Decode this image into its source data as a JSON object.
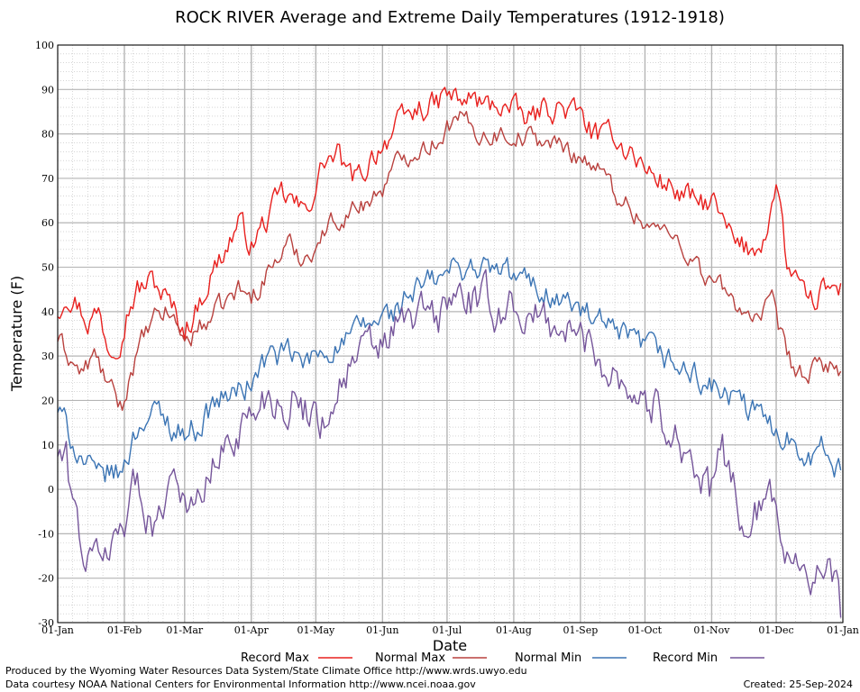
{
  "chart_data": {
    "type": "line",
    "title": "ROCK RIVER Average and Extreme Daily Temperatures (1912-1918)",
    "xlabel": "Date",
    "ylabel": "Temperature (F)",
    "ylim": [
      -30,
      100
    ],
    "yticks": [
      -30,
      -20,
      -10,
      0,
      10,
      20,
      30,
      40,
      50,
      60,
      70,
      80,
      90,
      100
    ],
    "x_days": [
      1,
      32,
      60,
      91,
      121,
      152,
      182,
      213,
      244,
      274,
      305,
      335,
      366
    ],
    "xtick_labels": [
      "01-Jan",
      "01-Feb",
      "01-Mar",
      "01-Apr",
      "01-May",
      "01-Jun",
      "01-Jul",
      "01-Aug",
      "01-Sep",
      "01-Oct",
      "01-Nov",
      "01-Dec",
      "01-Jan"
    ],
    "grid": true,
    "legend_position": "bottom",
    "colors": {
      "record_max": "#e8201e",
      "normal_max": "#b8413e",
      "normal_min": "#3b74b4",
      "record_min": "#75559a",
      "grid_major": "#b5b5b5",
      "grid_minor": "#bdbdbd"
    },
    "series": [
      {
        "name": "Record Max",
        "color": "#e8201e",
        "anchors": [
          [
            1,
            40
          ],
          [
            5,
            45
          ],
          [
            10,
            42
          ],
          [
            15,
            38
          ],
          [
            20,
            40
          ],
          [
            25,
            32
          ],
          [
            30,
            35
          ],
          [
            33,
            40
          ],
          [
            38,
            45
          ],
          [
            45,
            47
          ],
          [
            50,
            44
          ],
          [
            55,
            40
          ],
          [
            60,
            36
          ],
          [
            65,
            40
          ],
          [
            72,
            48
          ],
          [
            80,
            55
          ],
          [
            85,
            60
          ],
          [
            91,
            55
          ],
          [
            100,
            62
          ],
          [
            105,
            66
          ],
          [
            110,
            65
          ],
          [
            115,
            62
          ],
          [
            121,
            68
          ],
          [
            125,
            74
          ],
          [
            132,
            75
          ],
          [
            136,
            70
          ],
          [
            142,
            70
          ],
          [
            147,
            75
          ],
          [
            152,
            78
          ],
          [
            160,
            82
          ],
          [
            165,
            84
          ],
          [
            170,
            86
          ],
          [
            176,
            86
          ],
          [
            182,
            89
          ],
          [
            188,
            87
          ],
          [
            194,
            88
          ],
          [
            200,
            86
          ],
          [
            206,
            87
          ],
          [
            213,
            85
          ],
          [
            220,
            83
          ],
          [
            228,
            86
          ],
          [
            235,
            86
          ],
          [
            244,
            84
          ],
          [
            250,
            80
          ],
          [
            255,
            78
          ],
          [
            258,
            82
          ],
          [
            262,
            78
          ],
          [
            268,
            76
          ],
          [
            274,
            72
          ],
          [
            280,
            70
          ],
          [
            286,
            68
          ],
          [
            292,
            66
          ],
          [
            300,
            64
          ],
          [
            305,
            65
          ],
          [
            312,
            58
          ],
          [
            318,
            54
          ],
          [
            325,
            54
          ],
          [
            330,
            58
          ],
          [
            333,
            64
          ],
          [
            336,
            68
          ],
          [
            340,
            50
          ],
          [
            345,
            46
          ],
          [
            350,
            40
          ],
          [
            355,
            44
          ],
          [
            360,
            45
          ],
          [
            365,
            45
          ]
        ],
        "amp": 3.2
      },
      {
        "name": "Normal Max",
        "color": "#b8413e",
        "anchors": [
          [
            1,
            34
          ],
          [
            6,
            30
          ],
          [
            12,
            26
          ],
          [
            18,
            30
          ],
          [
            22,
            26
          ],
          [
            26,
            22
          ],
          [
            31,
            18
          ],
          [
            34,
            25
          ],
          [
            40,
            33
          ],
          [
            46,
            38
          ],
          [
            52,
            40
          ],
          [
            58,
            36
          ],
          [
            60,
            33
          ],
          [
            66,
            36
          ],
          [
            75,
            40
          ],
          [
            85,
            45
          ],
          [
            91,
            43
          ],
          [
            100,
            50
          ],
          [
            108,
            55
          ],
          [
            115,
            52
          ],
          [
            121,
            55
          ],
          [
            128,
            60
          ],
          [
            135,
            62
          ],
          [
            142,
            64
          ],
          [
            148,
            66
          ],
          [
            152,
            68
          ],
          [
            160,
            74
          ],
          [
            168,
            77
          ],
          [
            176,
            78
          ],
          [
            182,
            82
          ],
          [
            190,
            83
          ],
          [
            198,
            80
          ],
          [
            206,
            80
          ],
          [
            213,
            80
          ],
          [
            222,
            79
          ],
          [
            230,
            78
          ],
          [
            240,
            76
          ],
          [
            248,
            74
          ],
          [
            254,
            71
          ],
          [
            260,
            67
          ],
          [
            266,
            64
          ],
          [
            274,
            60
          ],
          [
            282,
            58
          ],
          [
            290,
            56
          ],
          [
            296,
            52
          ],
          [
            302,
            48
          ],
          [
            308,
            46
          ],
          [
            315,
            42
          ],
          [
            322,
            40
          ],
          [
            328,
            38
          ],
          [
            333,
            42
          ],
          [
            336,
            36
          ],
          [
            340,
            30
          ],
          [
            345,
            26
          ],
          [
            350,
            25
          ],
          [
            355,
            28
          ],
          [
            360,
            28
          ],
          [
            365,
            27
          ]
        ],
        "amp": 2.6
      },
      {
        "name": "Normal Min",
        "color": "#3b74b4",
        "anchors": [
          [
            1,
            18
          ],
          [
            5,
            14
          ],
          [
            10,
            9
          ],
          [
            15,
            5
          ],
          [
            20,
            2
          ],
          [
            25,
            4
          ],
          [
            30,
            3
          ],
          [
            35,
            10
          ],
          [
            40,
            16
          ],
          [
            48,
            17
          ],
          [
            55,
            14
          ],
          [
            60,
            13
          ],
          [
            66,
            14
          ],
          [
            75,
            20
          ],
          [
            85,
            22
          ],
          [
            91,
            24
          ],
          [
            96,
            28
          ],
          [
            100,
            30
          ],
          [
            110,
            30
          ],
          [
            115,
            28
          ],
          [
            121,
            30
          ],
          [
            128,
            32
          ],
          [
            135,
            33
          ],
          [
            142,
            36
          ],
          [
            150,
            38
          ],
          [
            158,
            40
          ],
          [
            165,
            44
          ],
          [
            172,
            46
          ],
          [
            178,
            47
          ],
          [
            182,
            49
          ],
          [
            190,
            50
          ],
          [
            198,
            50
          ],
          [
            206,
            49
          ],
          [
            213,
            48
          ],
          [
            222,
            46
          ],
          [
            230,
            44
          ],
          [
            238,
            42
          ],
          [
            244,
            40
          ],
          [
            250,
            38
          ],
          [
            256,
            36
          ],
          [
            262,
            34
          ],
          [
            268,
            33
          ],
          [
            274,
            32
          ],
          [
            282,
            30
          ],
          [
            288,
            28
          ],
          [
            295,
            26
          ],
          [
            302,
            24
          ],
          [
            308,
            22
          ],
          [
            315,
            20
          ],
          [
            322,
            18
          ],
          [
            328,
            16
          ],
          [
            334,
            14
          ],
          [
            340,
            12
          ],
          [
            346,
            10
          ],
          [
            352,
            8
          ],
          [
            358,
            9
          ],
          [
            362,
            6
          ],
          [
            365,
            4
          ]
        ],
        "amp": 3.4
      },
      {
        "name": "Record Min",
        "color": "#75559a",
        "anchors": [
          [
            1,
            8
          ],
          [
            5,
            6
          ],
          [
            9,
            -5
          ],
          [
            13,
            -14
          ],
          [
            17,
            -18
          ],
          [
            21,
            -12
          ],
          [
            25,
            -16
          ],
          [
            28,
            -10
          ],
          [
            32,
            -6
          ],
          [
            36,
            2
          ],
          [
            40,
            -2
          ],
          [
            44,
            -6
          ],
          [
            48,
            -8
          ],
          [
            52,
            2
          ],
          [
            56,
            6
          ],
          [
            60,
            -2
          ],
          [
            64,
            -6
          ],
          [
            70,
            2
          ],
          [
            75,
            6
          ],
          [
            80,
            10
          ],
          [
            85,
            14
          ],
          [
            91,
            16
          ],
          [
            95,
            20
          ],
          [
            100,
            22
          ],
          [
            105,
            19
          ],
          [
            110,
            20
          ],
          [
            115,
            18
          ],
          [
            121,
            18
          ],
          [
            125,
            15
          ],
          [
            130,
            22
          ],
          [
            136,
            27
          ],
          [
            142,
            30
          ],
          [
            148,
            32
          ],
          [
            152,
            32
          ],
          [
            158,
            36
          ],
          [
            165,
            38
          ],
          [
            172,
            40
          ],
          [
            178,
            38
          ],
          [
            182,
            42
          ],
          [
            188,
            44
          ],
          [
            194,
            42
          ],
          [
            200,
            42
          ],
          [
            206,
            40
          ],
          [
            213,
            42
          ],
          [
            220,
            38
          ],
          [
            228,
            38
          ],
          [
            236,
            36
          ],
          [
            244,
            34
          ],
          [
            250,
            32
          ],
          [
            256,
            28
          ],
          [
            262,
            26
          ],
          [
            268,
            22
          ],
          [
            274,
            20
          ],
          [
            280,
            18
          ],
          [
            286,
            14
          ],
          [
            292,
            10
          ],
          [
            298,
            4
          ],
          [
            304,
            -2
          ],
          [
            310,
            8
          ],
          [
            314,
            4
          ],
          [
            318,
            -4
          ],
          [
            322,
            -12
          ],
          [
            326,
            -6
          ],
          [
            330,
            -2
          ],
          [
            334,
            -4
          ],
          [
            338,
            -10
          ],
          [
            342,
            -14
          ],
          [
            346,
            -16
          ],
          [
            350,
            -18
          ],
          [
            354,
            -19
          ],
          [
            358,
            -20
          ],
          [
            362,
            -21
          ],
          [
            365,
            -28
          ]
        ],
        "amp": 5.0
      }
    ]
  },
  "footer": {
    "produced_by": "Produced by the Wyoming Water Resources Data System/State Climate Office http://www.wrds.uwyo.edu",
    "courtesy": "Data courtesy NOAA National Centers for Environmental Information http://www.ncei.noaa.gov",
    "created": "Created:  25-Sep-2024"
  }
}
